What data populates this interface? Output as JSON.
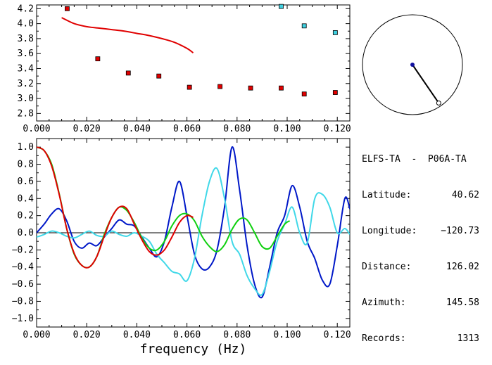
{
  "chart_data": [
    {
      "type": "scatter",
      "title": "",
      "xlabel": "",
      "ylabel": "",
      "xlim": [
        0,
        0.125
      ],
      "ylim": [
        2.7,
        4.25
      ],
      "xticks": [
        0.0,
        0.02,
        0.04,
        0.06,
        0.08,
        0.1,
        0.12
      ],
      "xtick_labels": [
        "0.000",
        "0.020",
        "0.040",
        "0.060",
        "0.080",
        "0.100",
        "0.120"
      ],
      "yticks": [
        2.8,
        3.0,
        3.2,
        3.4,
        3.6,
        3.8,
        4.0,
        4.2
      ],
      "ytick_labels": [
        "2.8",
        "3.0",
        "3.2",
        "3.4",
        "3.6",
        "3.8",
        "4.0",
        "4.2"
      ],
      "series": [
        {
          "kind": "line",
          "color": "#e00000",
          "x": [
            0.01,
            0.015,
            0.02,
            0.025,
            0.03,
            0.035,
            0.04,
            0.045,
            0.05,
            0.055,
            0.06,
            0.0625
          ],
          "y": [
            4.08,
            4.0,
            3.96,
            3.94,
            3.92,
            3.9,
            3.87,
            3.84,
            3.8,
            3.75,
            3.67,
            3.61
          ]
        },
        {
          "kind": "points",
          "color": "#e00000",
          "x": [
            0.0122,
            0.0244,
            0.0366,
            0.0488,
            0.061,
            0.0732,
            0.0854,
            0.0976,
            0.1068,
            0.1192
          ],
          "y": [
            4.2,
            3.53,
            3.34,
            3.3,
            3.15,
            3.16,
            3.14,
            3.14,
            3.06,
            3.08
          ]
        },
        {
          "kind": "points",
          "color": "#40d0e0",
          "x": [
            0.0976,
            0.1068,
            0.1192
          ],
          "y": [
            4.23,
            3.97,
            3.88
          ]
        }
      ]
    },
    {
      "type": "line",
      "title": "",
      "xlabel": "frequency (Hz)",
      "ylabel": "",
      "xlim": [
        0,
        0.125
      ],
      "ylim": [
        -1.1,
        1.1
      ],
      "xticks": [
        0.0,
        0.02,
        0.04,
        0.06,
        0.08,
        0.1,
        0.12
      ],
      "xtick_labels": [
        "0.000",
        "0.020",
        "0.040",
        "0.060",
        "0.080",
        "0.100",
        "0.120"
      ],
      "yticks": [
        1.0,
        0.8,
        0.6,
        0.4,
        0.2,
        0.0,
        -0.2,
        -0.4,
        -0.6,
        -0.8,
        -1.0
      ],
      "ytick_labels": [
        "1.0",
        "0.8",
        "0.6",
        "0.4",
        "0.2",
        "0.0",
        "−0.2",
        "−0.4",
        "−0.6",
        "−0.8",
        "−1.0"
      ],
      "zero_line": true,
      "series": [
        {
          "color": "#0018c8",
          "x": [
            0.0,
            0.003,
            0.006,
            0.009,
            0.012,
            0.015,
            0.018,
            0.021,
            0.024,
            0.027,
            0.03,
            0.033,
            0.036,
            0.039,
            0.042,
            0.045,
            0.048,
            0.051,
            0.054,
            0.057,
            0.06,
            0.063,
            0.066,
            0.069,
            0.072,
            0.075,
            0.078,
            0.081,
            0.084,
            0.087,
            0.09,
            0.093,
            0.096,
            0.099,
            0.102,
            0.105,
            0.108,
            0.111,
            0.114,
            0.117,
            0.12,
            0.123,
            0.125
          ],
          "y": [
            0.0,
            0.1,
            0.22,
            0.28,
            0.14,
            -0.1,
            -0.18,
            -0.12,
            -0.15,
            -0.05,
            0.05,
            0.15,
            0.1,
            0.08,
            -0.05,
            -0.18,
            -0.28,
            -0.1,
            0.3,
            0.6,
            0.2,
            -0.25,
            -0.42,
            -0.4,
            -0.2,
            0.3,
            1.0,
            0.5,
            -0.15,
            -0.6,
            -0.75,
            -0.4,
            0.0,
            0.2,
            0.55,
            0.3,
            -0.1,
            -0.3,
            -0.55,
            -0.6,
            -0.15,
            0.4,
            0.28
          ]
        },
        {
          "color": "#40d8e8",
          "x": [
            0.0,
            0.003,
            0.006,
            0.009,
            0.012,
            0.015,
            0.018,
            0.021,
            0.024,
            0.027,
            0.03,
            0.033,
            0.036,
            0.039,
            0.042,
            0.045,
            0.048,
            0.051,
            0.054,
            0.057,
            0.06,
            0.063,
            0.066,
            0.069,
            0.072,
            0.075,
            0.078,
            0.081,
            0.084,
            0.087,
            0.09,
            0.093,
            0.096,
            0.099,
            0.102,
            0.105,
            0.108,
            0.111,
            0.114,
            0.117,
            0.12,
            0.123,
            0.125
          ],
          "y": [
            -0.05,
            -0.02,
            0.02,
            0.0,
            -0.04,
            -0.06,
            -0.02,
            0.02,
            -0.03,
            -0.04,
            0.02,
            -0.02,
            -0.04,
            0.0,
            -0.04,
            -0.1,
            -0.25,
            -0.35,
            -0.45,
            -0.48,
            -0.56,
            -0.3,
            0.2,
            0.6,
            0.75,
            0.4,
            -0.1,
            -0.25,
            -0.5,
            -0.65,
            -0.72,
            -0.45,
            -0.1,
            0.1,
            0.3,
            0.0,
            -0.12,
            0.4,
            0.45,
            0.3,
            0.0,
            0.05,
            -0.02
          ]
        },
        {
          "color": "#10d010",
          "x": [
            0.0,
            0.003,
            0.006,
            0.009,
            0.012,
            0.015,
            0.018,
            0.021,
            0.024,
            0.027,
            0.03,
            0.033,
            0.036,
            0.039,
            0.042,
            0.045,
            0.048,
            0.051,
            0.054,
            0.057,
            0.06,
            0.063,
            0.066,
            0.069,
            0.072,
            0.075,
            0.078,
            0.081,
            0.084,
            0.087,
            0.09,
            0.093,
            0.096,
            0.099,
            0.101
          ],
          "y": [
            1.0,
            0.96,
            0.8,
            0.46,
            0.05,
            -0.25,
            -0.38,
            -0.4,
            -0.28,
            -0.02,
            0.18,
            0.3,
            0.26,
            0.12,
            -0.06,
            -0.18,
            -0.2,
            -0.1,
            0.08,
            0.2,
            0.22,
            0.14,
            -0.04,
            -0.16,
            -0.22,
            -0.14,
            0.04,
            0.16,
            0.15,
            0.0,
            -0.16,
            -0.18,
            -0.04,
            0.1,
            0.14
          ]
        },
        {
          "color": "#e00000",
          "x": [
            0.0,
            0.003,
            0.006,
            0.009,
            0.012,
            0.015,
            0.018,
            0.021,
            0.024,
            0.027,
            0.03,
            0.033,
            0.036,
            0.039,
            0.042,
            0.045,
            0.048,
            0.051,
            0.054,
            0.057,
            0.06,
            0.0625
          ],
          "y": [
            1.0,
            0.96,
            0.78,
            0.45,
            0.05,
            -0.24,
            -0.38,
            -0.4,
            -0.28,
            -0.04,
            0.18,
            0.3,
            0.28,
            0.1,
            -0.08,
            -0.22,
            -0.26,
            -0.2,
            -0.05,
            0.12,
            0.2,
            0.18
          ]
        }
      ]
    }
  ],
  "map": {
    "center_dot_color": "#1010a0",
    "line_color": "#000000",
    "azimuth_deg": 145.58,
    "distance_fraction": 0.93
  },
  "station_info": {
    "header": "ELFS-TA  -  P06A-TA",
    "rows": [
      {
        "label": "Latitude:",
        "value": "40.62"
      },
      {
        "label": "Longitude:",
        "value": "−120.73"
      },
      {
        "label": "Distance:",
        "value": "126.02"
      },
      {
        "label": "Azimuth:",
        "value": "145.58"
      },
      {
        "label": "Records:",
        "value": "1313"
      }
    ]
  }
}
